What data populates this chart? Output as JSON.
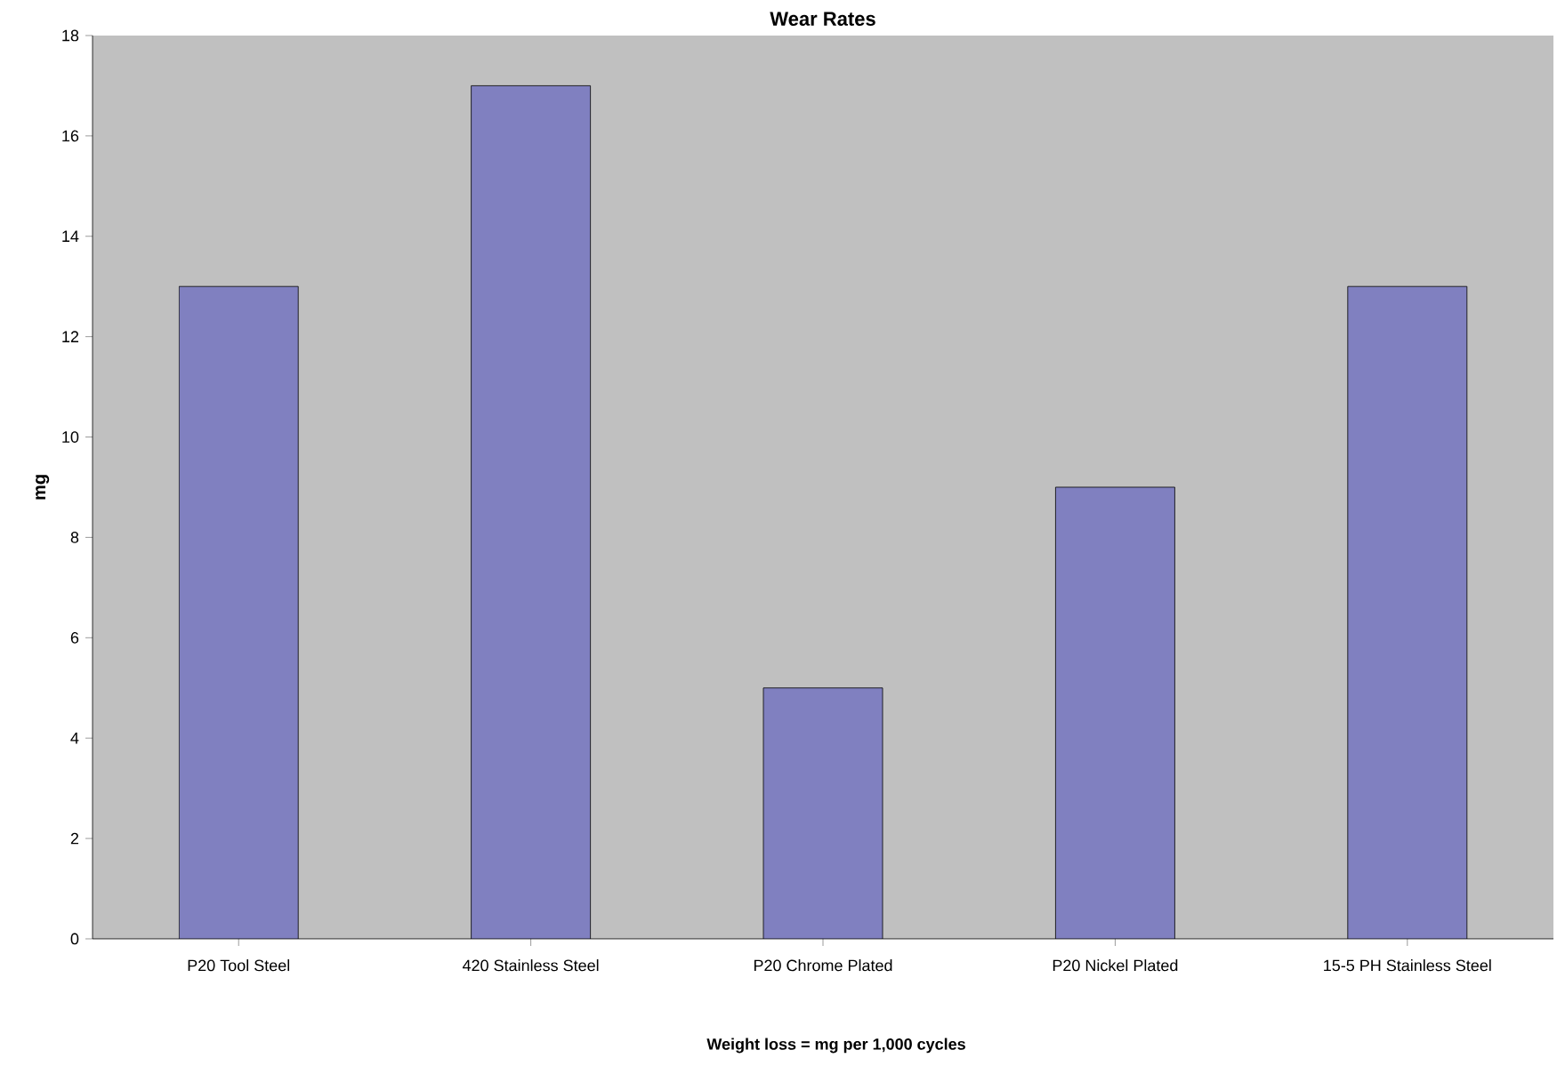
{
  "chart_data": {
    "type": "bar",
    "title": "Wear Rates",
    "ylabel": "mg",
    "categories": [
      "P20 Tool Steel",
      "420 Stainless Steel",
      "P20 Chrome Plated",
      "P20 Nickel Plated",
      "15-5 PH Stainless Steel"
    ],
    "values": [
      13,
      17,
      5,
      9,
      13
    ],
    "color": "#8080c0",
    "ylim": [
      0,
      18
    ],
    "yticks": [
      0,
      2,
      4,
      6,
      8,
      10,
      12,
      14,
      16,
      18
    ],
    "grid": false,
    "annotations": [
      "Weight loss = mg per 1,000 cycles"
    ]
  }
}
